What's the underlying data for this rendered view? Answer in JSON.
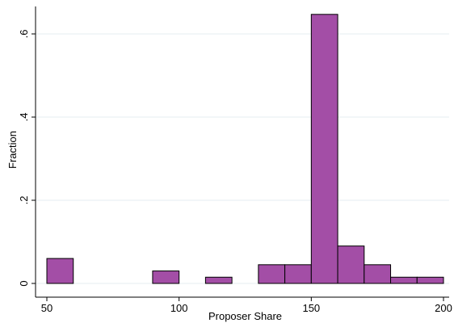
{
  "chart_data": {
    "type": "bar",
    "subtype": "histogram",
    "bar_color": "#a34ea6",
    "bar_edge_color": "#000000",
    "grid_color": "#e6eef2",
    "grid": "horizontal",
    "xlabel": "Proposer Share",
    "ylabel": "Fraction",
    "xlim": [
      48,
      205
    ],
    "ylim": [
      0,
      0.67
    ],
    "xticks": [
      50,
      100,
      150,
      200
    ],
    "xtick_labels": [
      "50",
      "100",
      "150",
      "200"
    ],
    "yticks": [
      0,
      0.2,
      0.4,
      0.6
    ],
    "ytick_labels": [
      "0",
      ".2",
      ".4",
      ".6"
    ],
    "bins": [
      {
        "start": 50,
        "end": 60,
        "value": 0.06
      },
      {
        "start": 90,
        "end": 100,
        "value": 0.03
      },
      {
        "start": 110,
        "end": 120,
        "value": 0.015
      },
      {
        "start": 130,
        "end": 140,
        "value": 0.045
      },
      {
        "start": 140,
        "end": 150,
        "value": 0.045
      },
      {
        "start": 150,
        "end": 160,
        "value": 0.647
      },
      {
        "start": 160,
        "end": 170,
        "value": 0.09
      },
      {
        "start": 170,
        "end": 180,
        "value": 0.045
      },
      {
        "start": 180,
        "end": 190,
        "value": 0.015
      },
      {
        "start": 190,
        "end": 200,
        "value": 0.015
      }
    ]
  }
}
